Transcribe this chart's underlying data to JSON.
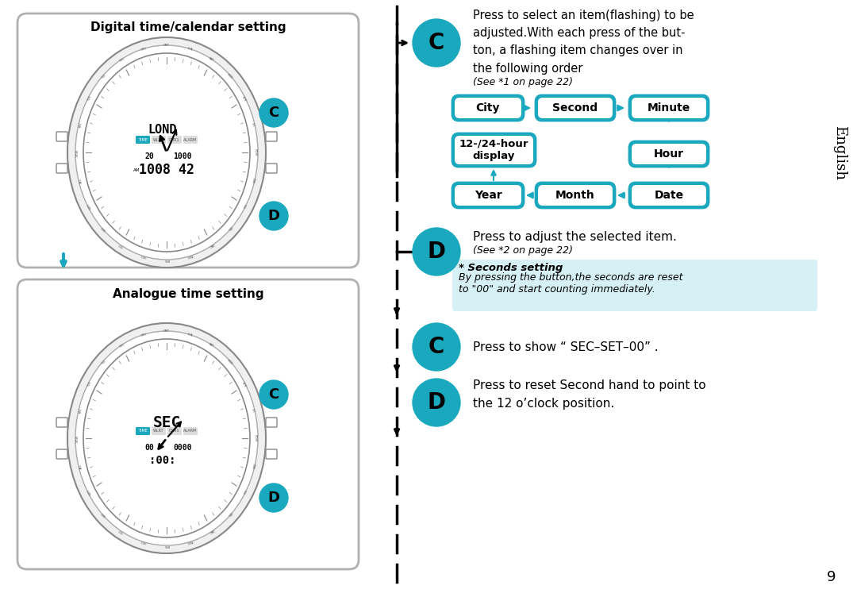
{
  "bg_color": "#ffffff",
  "border_color": "#b0b0b0",
  "teal_color": "#1aa8be",
  "teal_dark": "#0d8fa3",
  "arrow_color": "#1aa8be",
  "black": "#000000",
  "light_blue_bg": "#d6f0f5",
  "title1": "Digital time/calendar setting",
  "title2": "Analogue time setting",
  "english_label": "English",
  "text1": "Press to select an item(flashing) to be\nadjusted.With each press of the but-\nton, a flashing item changes over in\nthe following order",
  "text1_sub": "(See *1 on page 22)",
  "flow_items": [
    "City",
    "Second",
    "Minute",
    "12-/24-hour\ndisplay",
    "Hour",
    "Year",
    "Month",
    "Date"
  ],
  "text2": "Press to adjust the selected item.",
  "text2_sub": "(See *2 on page 22)",
  "note_title": "* Seconds setting",
  "note_body": "By pressing the button,the seconds are reset\nto \"00\" and start counting immediately.",
  "text3": "Press to show “ SEC–SET–00” .",
  "text4": "Press to reset Second hand to point to\nthe 12 o’clock position.",
  "page_num": "9"
}
